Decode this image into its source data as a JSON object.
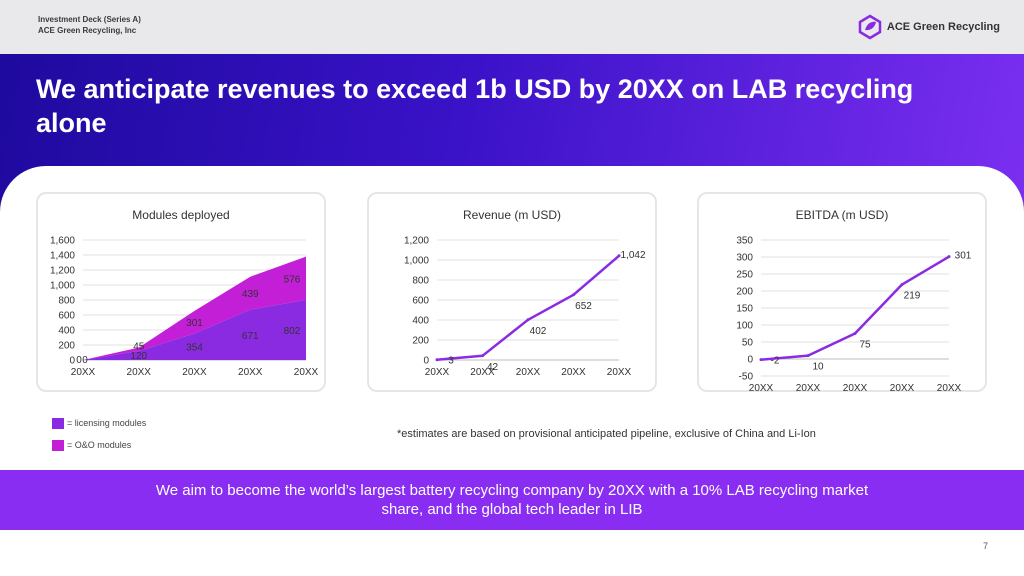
{
  "header": {
    "deck_title": "Investment Deck (Series A)",
    "company": "ACE Green Recycling, Inc",
    "logo_text": "ACE Green Recycling"
  },
  "headline": "We anticipate revenues to exceed 1b USD by 20XX on LAB recycling alone",
  "legend": {
    "licensing": "= licensing modules",
    "om": "= O&O modules"
  },
  "footnote": "*estimates are based on provisional anticipated pipeline, exclusive of China and Li-Ion",
  "bottom_message": "We aim to become the world’s largest battery recycling company by 20XX with a 10% LAB recycling market share, and the global tech leader in LIB",
  "page_number": "7",
  "colors": {
    "licensing": "#8a2be2",
    "om": "#c21fd6",
    "line": "#8a2be2",
    "banner": "#2f10b8",
    "bottom_bar": "#8a2df3"
  },
  "chart_data": [
    {
      "type": "area",
      "stacked": true,
      "title": "Modules deployed",
      "categories": [
        "20XX",
        "20XX",
        "20XX",
        "20XX",
        "20XX"
      ],
      "series": [
        {
          "name": "licensing modules",
          "values": [
            0,
            120,
            354,
            671,
            802
          ]
        },
        {
          "name": "O&O modules",
          "values": [
            0,
            45,
            301,
            439,
            576
          ]
        }
      ],
      "point_labels": [
        [
          "0",
          "120",
          "354",
          "671",
          "802"
        ],
        [
          "0",
          "45",
          "301",
          "439",
          "576"
        ]
      ],
      "ylim": [
        0,
        1600
      ],
      "yticks": [
        "0",
        "200",
        "400",
        "600",
        "800",
        "1,000",
        "1,200",
        "1,400",
        "1,600"
      ]
    },
    {
      "type": "line",
      "title": "Revenue (m USD)",
      "categories": [
        "20XX",
        "20XX",
        "20XX",
        "20XX",
        "20XX"
      ],
      "values": [
        3,
        42,
        402,
        652,
        1042
      ],
      "labels": [
        "3",
        "42",
        "402",
        "652",
        "1,042"
      ],
      "ylim": [
        0,
        1200
      ],
      "yticks": [
        "0",
        "200",
        "400",
        "600",
        "800",
        "1,000",
        "1,200"
      ]
    },
    {
      "type": "line",
      "title": "EBITDA (m USD)",
      "categories": [
        "20XX",
        "20XX",
        "20XX",
        "20XX",
        "20XX"
      ],
      "values": [
        -2,
        10,
        75,
        219,
        301
      ],
      "labels": [
        "-2",
        "10",
        "75",
        "219",
        "301"
      ],
      "ylim": [
        -50,
        350
      ],
      "yticks": [
        "-50",
        "0",
        "50",
        "100",
        "150",
        "200",
        "250",
        "300",
        "350"
      ]
    }
  ]
}
